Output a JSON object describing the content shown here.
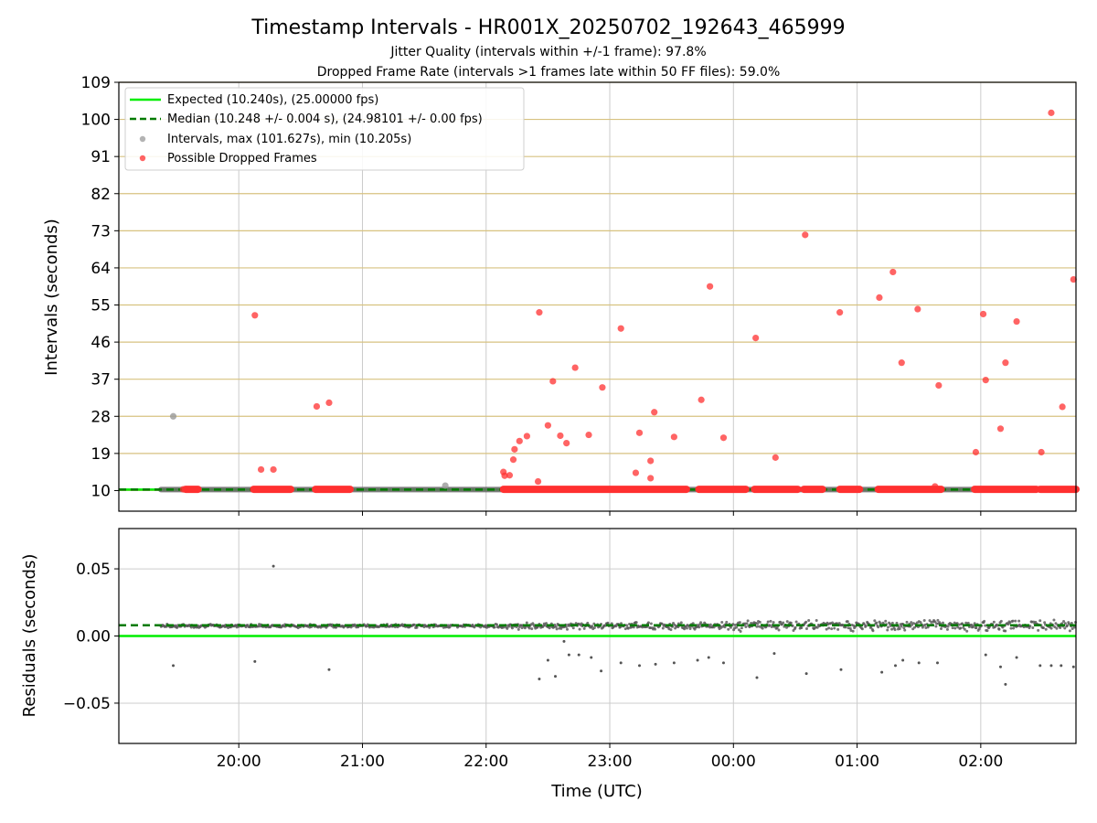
{
  "title": "Timestamp Intervals - HR001X_20250702_192643_465999",
  "subtitle_1": "Jitter Quality (intervals within +/-1 frame): 97.8%",
  "subtitle_2": "Dropped Frame Rate (intervals >1 frames late within 50 FF files): 59.0%",
  "colors": {
    "expected": "#00ee00",
    "median": "#007a00",
    "interval_points": "#999999",
    "dropped": "#ff3030",
    "hgrid_top": "#d7c280",
    "grid": "#cccccc",
    "residual_points": "#555555"
  },
  "chart_data": [
    {
      "type": "scatter",
      "ylabel": "Intervals (seconds)",
      "ylim": [
        5,
        109
      ],
      "yticks": [
        "10",
        "19",
        "28",
        "37",
        "46",
        "55",
        "64",
        "73",
        "82",
        "91",
        "100",
        "109"
      ],
      "ytick_values": [
        10,
        19,
        28,
        37,
        46,
        55,
        64,
        73,
        82,
        91,
        100,
        109
      ],
      "xlim_hours": [
        19.03,
        26.77
      ],
      "xtick_hours": [
        20,
        21,
        22,
        23,
        24,
        25,
        26
      ],
      "grid": "horizontal and vertical",
      "legend_position": "upper-left",
      "legend": {
        "expected": "Expected (10.240s), (25.00000 fps)",
        "median": "Median (10.248 +/- 0.004 s), (24.98101 +/- 0.00 fps)",
        "intervals": "Intervals, max (101.627s), min (10.205s)",
        "dropped": "Possible Dropped Frames"
      },
      "expected_value": 10.24,
      "median_value": 10.248,
      "intervals_baseline": {
        "x_start": 19.37,
        "x_end": 26.77,
        "y": 10.24
      },
      "intervals_outliers": [
        {
          "x": 19.47,
          "y": 28.0
        },
        {
          "x": 21.67,
          "y": 11.2
        }
      ],
      "dropped_bands": [
        [
          19.57,
          19.67
        ],
        [
          20.12,
          20.42
        ],
        [
          20.62,
          20.9
        ],
        [
          22.14,
          23.62
        ],
        [
          23.72,
          24.1
        ],
        [
          24.17,
          24.52
        ],
        [
          24.57,
          24.72
        ],
        [
          24.86,
          25.02
        ],
        [
          25.17,
          25.68
        ],
        [
          25.95,
          26.45
        ],
        [
          26.48,
          26.77
        ]
      ],
      "dropped_points": [
        {
          "x": 19.55,
          "y": 10.3
        },
        {
          "x": 20.13,
          "y": 52.5
        },
        {
          "x": 20.18,
          "y": 15.1
        },
        {
          "x": 20.28,
          "y": 15.1
        },
        {
          "x": 20.63,
          "y": 30.4
        },
        {
          "x": 20.73,
          "y": 31.3
        },
        {
          "x": 22.14,
          "y": 14.5
        },
        {
          "x": 22.15,
          "y": 13.6
        },
        {
          "x": 22.19,
          "y": 13.7
        },
        {
          "x": 22.22,
          "y": 17.5
        },
        {
          "x": 22.23,
          "y": 20.0
        },
        {
          "x": 22.27,
          "y": 22.0
        },
        {
          "x": 22.33,
          "y": 23.2
        },
        {
          "x": 22.42,
          "y": 12.2
        },
        {
          "x": 22.43,
          "y": 53.2
        },
        {
          "x": 22.5,
          "y": 25.8
        },
        {
          "x": 22.54,
          "y": 36.5
        },
        {
          "x": 22.6,
          "y": 23.3
        },
        {
          "x": 22.65,
          "y": 21.5
        },
        {
          "x": 22.72,
          "y": 39.8
        },
        {
          "x": 22.83,
          "y": 23.5
        },
        {
          "x": 22.94,
          "y": 35.0
        },
        {
          "x": 23.09,
          "y": 49.3
        },
        {
          "x": 23.21,
          "y": 14.3
        },
        {
          "x": 23.24,
          "y": 24.0
        },
        {
          "x": 23.33,
          "y": 17.2
        },
        {
          "x": 23.33,
          "y": 13.0
        },
        {
          "x": 23.36,
          "y": 29.0
        },
        {
          "x": 23.52,
          "y": 23.0
        },
        {
          "x": 23.74,
          "y": 32.0
        },
        {
          "x": 23.81,
          "y": 59.5
        },
        {
          "x": 23.92,
          "y": 22.8
        },
        {
          "x": 24.18,
          "y": 47.0
        },
        {
          "x": 24.34,
          "y": 18.0
        },
        {
          "x": 24.58,
          "y": 72.0
        },
        {
          "x": 24.86,
          "y": 53.2
        },
        {
          "x": 25.18,
          "y": 56.8
        },
        {
          "x": 25.29,
          "y": 63.0
        },
        {
          "x": 25.36,
          "y": 41.0
        },
        {
          "x": 25.49,
          "y": 54.0
        },
        {
          "x": 25.63,
          "y": 11.0
        },
        {
          "x": 25.66,
          "y": 35.5
        },
        {
          "x": 25.96,
          "y": 19.3
        },
        {
          "x": 26.02,
          "y": 52.8
        },
        {
          "x": 26.04,
          "y": 36.8
        },
        {
          "x": 26.16,
          "y": 25.0
        },
        {
          "x": 26.2,
          "y": 41.0
        },
        {
          "x": 26.29,
          "y": 51.0
        },
        {
          "x": 26.49,
          "y": 19.3
        },
        {
          "x": 26.57,
          "y": 101.6
        },
        {
          "x": 26.66,
          "y": 30.3
        },
        {
          "x": 26.75,
          "y": 61.2
        }
      ]
    },
    {
      "type": "scatter",
      "ylabel": "Residuals (seconds)",
      "xlabel": "Time (UTC)",
      "ylim": [
        -0.08,
        0.08
      ],
      "yticks": [
        "0.05",
        "0.00",
        "−0.05"
      ],
      "ytick_values": [
        0.05,
        0.0,
        -0.05
      ],
      "xticks": [
        "20:00",
        "21:00",
        "22:00",
        "23:00",
        "00:00",
        "01:00",
        "02:00"
      ],
      "xtick_hours": [
        20,
        21,
        22,
        23,
        24,
        25,
        26
      ],
      "xlim_hours": [
        19.03,
        26.77
      ],
      "grid": "horizontal and vertical",
      "expected_residual": 0.0,
      "median_residual": 0.008,
      "residual_bands": [
        {
          "x_start": 19.37,
          "x_end": 22.14,
          "center": 0.0075,
          "spread": 0.0015
        },
        {
          "x_start": 22.14,
          "x_end": 24.0,
          "center": 0.0075,
          "spread": 0.003
        },
        {
          "x_start": 24.0,
          "x_end": 26.77,
          "center": 0.0078,
          "spread": 0.0045
        }
      ],
      "residual_points": [
        {
          "x": 19.47,
          "y": -0.022
        },
        {
          "x": 20.13,
          "y": -0.019
        },
        {
          "x": 20.28,
          "y": 0.052
        },
        {
          "x": 20.73,
          "y": -0.025
        },
        {
          "x": 22.43,
          "y": -0.032
        },
        {
          "x": 22.5,
          "y": -0.018
        },
        {
          "x": 22.56,
          "y": -0.03
        },
        {
          "x": 22.63,
          "y": -0.004
        },
        {
          "x": 22.67,
          "y": -0.014
        },
        {
          "x": 22.75,
          "y": -0.014
        },
        {
          "x": 22.85,
          "y": -0.016
        },
        {
          "x": 22.93,
          "y": -0.026
        },
        {
          "x": 23.09,
          "y": -0.02
        },
        {
          "x": 23.24,
          "y": -0.022
        },
        {
          "x": 23.37,
          "y": -0.021
        },
        {
          "x": 23.52,
          "y": -0.02
        },
        {
          "x": 23.71,
          "y": -0.018
        },
        {
          "x": 23.8,
          "y": -0.016
        },
        {
          "x": 23.92,
          "y": -0.02
        },
        {
          "x": 24.19,
          "y": -0.031
        },
        {
          "x": 24.33,
          "y": -0.013
        },
        {
          "x": 24.59,
          "y": -0.028
        },
        {
          "x": 24.87,
          "y": -0.025
        },
        {
          "x": 25.2,
          "y": -0.027
        },
        {
          "x": 25.31,
          "y": -0.022
        },
        {
          "x": 25.37,
          "y": -0.018
        },
        {
          "x": 25.5,
          "y": -0.02
        },
        {
          "x": 25.65,
          "y": -0.02
        },
        {
          "x": 26.04,
          "y": -0.014
        },
        {
          "x": 26.16,
          "y": -0.023
        },
        {
          "x": 26.2,
          "y": -0.036
        },
        {
          "x": 26.29,
          "y": -0.016
        },
        {
          "x": 26.48,
          "y": -0.022
        },
        {
          "x": 26.57,
          "y": -0.022
        },
        {
          "x": 26.65,
          "y": -0.022
        },
        {
          "x": 26.75,
          "y": -0.023
        }
      ]
    }
  ]
}
